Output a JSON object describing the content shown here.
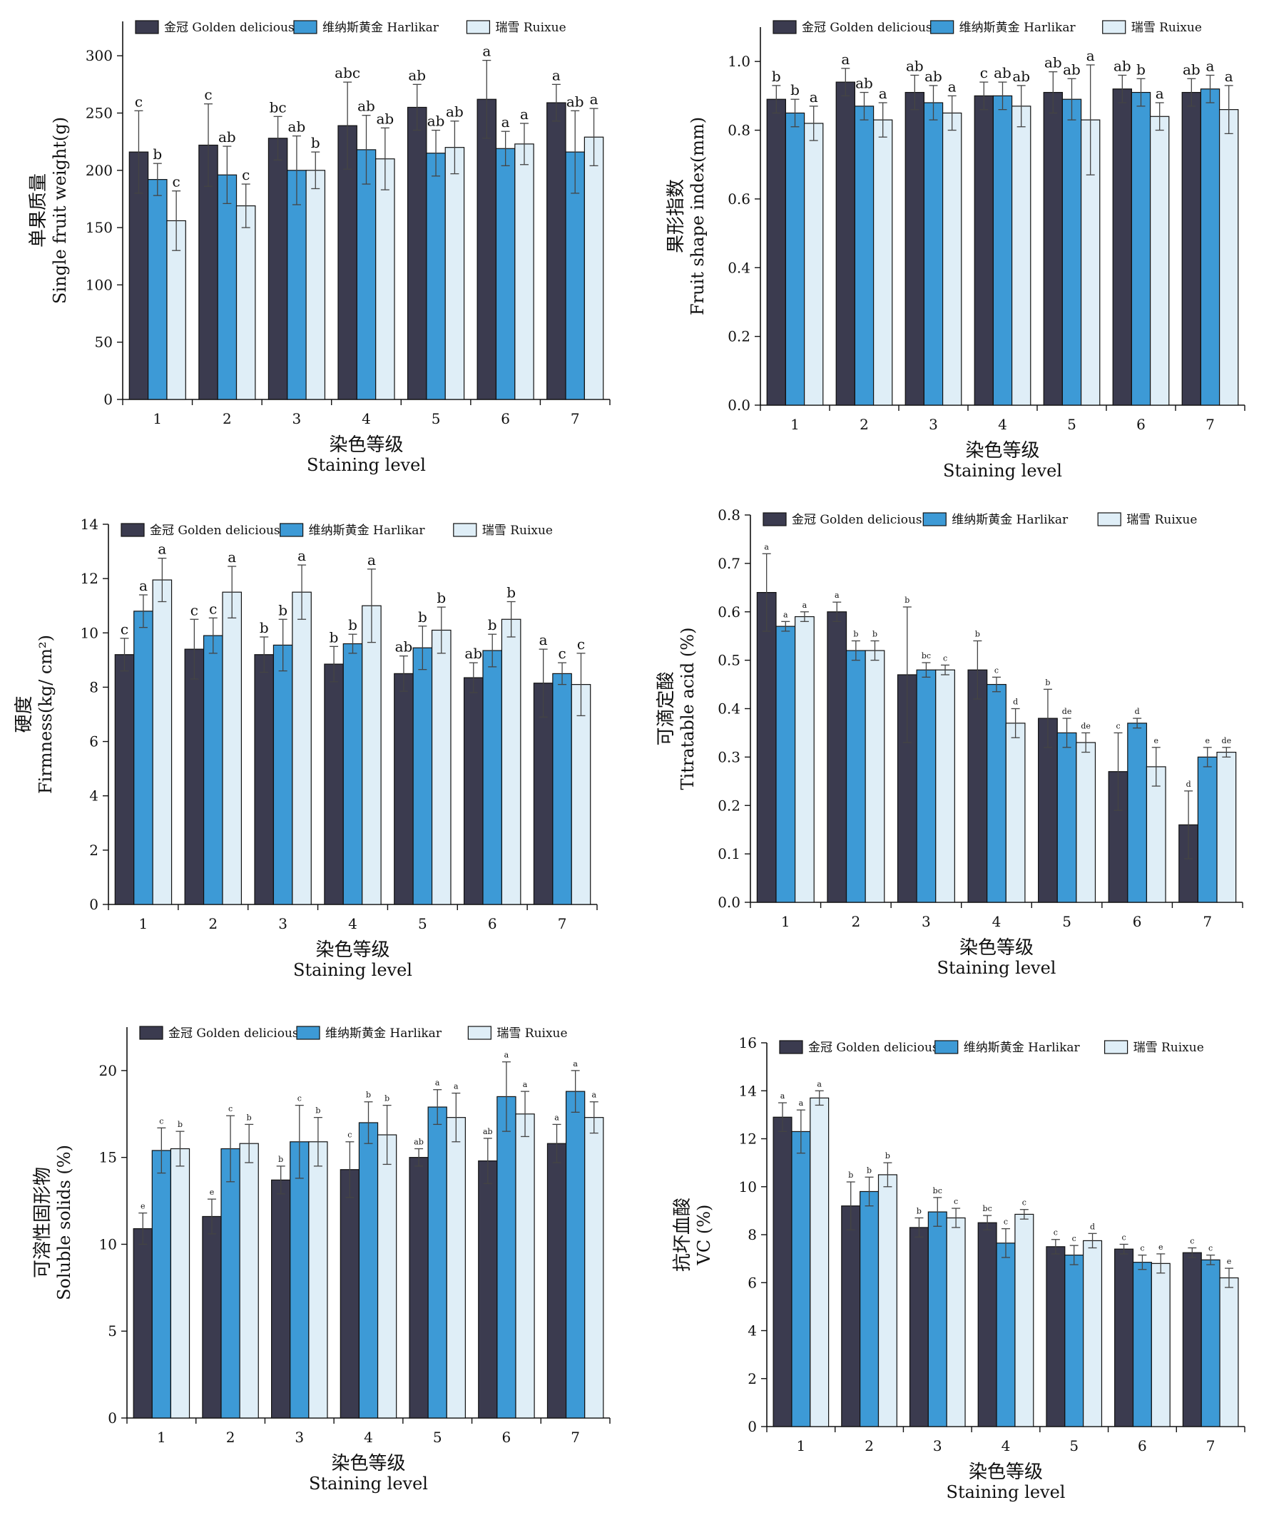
{
  "colors": {
    "golden": "#3b3b4f",
    "harlikar": "#3d9ad6",
    "ruixue": "#dfeef7"
  },
  "legend_labels": [
    "金冠 Golden delicious",
    "维纳斯黄金 Harlikar",
    "瑞雪 Ruixue"
  ],
  "chart_data": [
    {
      "type": "bar",
      "ylabel": "单果质量",
      "ylabel2": "Single fruit weight(g)",
      "xlabel": "染色等级",
      "xlabel2": "Staining level",
      "categories": [
        "1",
        "2",
        "3",
        "4",
        "5",
        "6",
        "7"
      ],
      "ylim": [
        0,
        330
      ],
      "yticks": [
        "0",
        "50",
        "100",
        "150",
        "200",
        "250",
        "300"
      ],
      "yticks_values": [
        0,
        50,
        100,
        150,
        200,
        250,
        300
      ],
      "legend_position": "top",
      "series": [
        {
          "name": "金冠 Golden delicious",
          "values": [
            216,
            222,
            228,
            239,
            255,
            262,
            259
          ],
          "errors": [
            36,
            36,
            19,
            38,
            20,
            34,
            16
          ],
          "labels": [
            "c",
            "c",
            "bc",
            "abc",
            "ab",
            "a",
            "a"
          ]
        },
        {
          "name": "维纳斯黄金 Harlikar",
          "values": [
            192,
            196,
            200,
            218,
            215,
            219,
            216
          ],
          "errors": [
            14,
            25,
            30,
            30,
            20,
            15,
            36
          ],
          "labels": [
            "b",
            "ab",
            "ab",
            "ab",
            "ab",
            "a",
            "ab"
          ]
        },
        {
          "name": "瑞雪 Ruixue",
          "values": [
            156,
            169,
            200,
            210,
            220,
            223,
            229
          ],
          "errors": [
            26,
            19,
            16,
            27,
            23,
            18,
            25
          ],
          "labels": [
            "c",
            "c",
            "b",
            "ab",
            "ab",
            "a",
            "a"
          ]
        }
      ]
    },
    {
      "type": "bar",
      "ylabel": "果形指数",
      "ylabel2": "Fruit shape index(mm)",
      "xlabel": "染色等级",
      "xlabel2": "Staining level",
      "categories": [
        "1",
        "2",
        "3",
        "4",
        "5",
        "6",
        "7"
      ],
      "ylim": [
        0,
        1.1
      ],
      "yticks": [
        "0.0",
        "0.2",
        "0.4",
        "0.6",
        "0.8",
        "1.0"
      ],
      "yticks_values": [
        0,
        0.2,
        0.4,
        0.6,
        0.8,
        1.0
      ],
      "legend_position": "top",
      "series": [
        {
          "name": "金冠 Golden delicious",
          "values": [
            0.89,
            0.94,
            0.91,
            0.9,
            0.91,
            0.92,
            0.91
          ],
          "errors": [
            0.04,
            0.04,
            0.05,
            0.04,
            0.06,
            0.04,
            0.04
          ],
          "labels": [
            "b",
            "a",
            "ab",
            "c",
            "ab",
            "ab",
            "ab"
          ]
        },
        {
          "name": "维纳斯黄金 Harlikar",
          "values": [
            0.85,
            0.87,
            0.88,
            0.9,
            0.89,
            0.91,
            0.92
          ],
          "errors": [
            0.04,
            0.04,
            0.05,
            0.04,
            0.06,
            0.04,
            0.04
          ],
          "labels": [
            "b",
            "ab",
            "ab",
            "ab",
            "ab",
            "b",
            "a"
          ]
        },
        {
          "name": "瑞雪 Ruixue",
          "values": [
            0.82,
            0.83,
            0.85,
            0.87,
            0.83,
            0.84,
            0.86
          ],
          "errors": [
            0.05,
            0.05,
            0.05,
            0.06,
            0.16,
            0.04,
            0.07
          ],
          "labels": [
            "a",
            "a",
            "a",
            "ab",
            "a",
            "a",
            "a"
          ]
        }
      ]
    },
    {
      "type": "bar",
      "ylabel": "硬度",
      "ylabel2": "Firmness(kg/ cm²)",
      "xlabel": "染色等级",
      "xlabel2": "Staining level",
      "categories": [
        "1",
        "2",
        "3",
        "4",
        "5",
        "6",
        "7"
      ],
      "ylim": [
        0,
        14
      ],
      "yticks": [
        "0",
        "2",
        "4",
        "6",
        "8",
        "10",
        "12",
        "14"
      ],
      "yticks_values": [
        0,
        2,
        4,
        6,
        8,
        10,
        12,
        14
      ],
      "legend_position": "top",
      "series": [
        {
          "name": "金冠 Golden delicious",
          "values": [
            9.2,
            9.4,
            9.2,
            8.85,
            8.5,
            8.35,
            8.15
          ],
          "errors": [
            0.6,
            1.1,
            0.65,
            0.65,
            0.65,
            0.55,
            1.25
          ],
          "labels": [
            "c",
            "c",
            "b",
            "b",
            "ab",
            "ab",
            "a"
          ]
        },
        {
          "name": "维纳斯黄金 Harlikar",
          "values": [
            10.8,
            9.9,
            9.55,
            9.6,
            9.45,
            9.35,
            8.5
          ],
          "errors": [
            0.6,
            0.65,
            0.95,
            0.35,
            0.8,
            0.6,
            0.4
          ],
          "labels": [
            "a",
            "c",
            "b",
            "b",
            "b",
            "b",
            "c"
          ]
        },
        {
          "name": "瑞雪 Ruixue",
          "values": [
            11.95,
            11.5,
            11.5,
            11.0,
            10.1,
            10.5,
            8.1
          ],
          "errors": [
            0.8,
            0.95,
            1.0,
            1.35,
            0.85,
            0.65,
            1.15
          ],
          "labels": [
            "a",
            "a",
            "a",
            "a",
            "b",
            "b",
            "c"
          ]
        }
      ]
    },
    {
      "type": "bar",
      "ylabel": "可滴定酸",
      "ylabel2": "Titratable acid (%)",
      "xlabel": "染色等级",
      "xlabel2": "Staining level",
      "categories": [
        "1",
        "2",
        "3",
        "4",
        "5",
        "6",
        "7"
      ],
      "ylim": [
        0,
        0.8
      ],
      "yticks": [
        "0.0",
        "0.1",
        "0.2",
        "0.3",
        "0.4",
        "0.5",
        "0.6",
        "0.7",
        "0.8"
      ],
      "yticks_values": [
        0,
        0.1,
        0.2,
        0.3,
        0.4,
        0.5,
        0.6,
        0.7,
        0.8
      ],
      "legend_position": "top",
      "series": [
        {
          "name": "金冠 Golden delicious",
          "values": [
            0.64,
            0.6,
            0.47,
            0.48,
            0.38,
            0.27,
            0.16
          ],
          "errors": [
            0.08,
            0.02,
            0.14,
            0.06,
            0.06,
            0.08,
            0.07
          ],
          "labels": [
            "a",
            "a",
            "b",
            "b",
            "b",
            "c",
            "d"
          ]
        },
        {
          "name": "维纳斯黄金 Harlikar",
          "values": [
            0.57,
            0.52,
            0.48,
            0.45,
            0.35,
            0.37,
            0.3
          ],
          "errors": [
            0.01,
            0.02,
            0.015,
            0.015,
            0.03,
            0.01,
            0.02
          ],
          "labels": [
            "a",
            "b",
            "bc",
            "c",
            "de",
            "d",
            "e"
          ]
        },
        {
          "name": "瑞雪 Ruixue",
          "values": [
            0.59,
            0.52,
            0.48,
            0.37,
            0.33,
            0.28,
            0.31
          ],
          "errors": [
            0.01,
            0.02,
            0.01,
            0.03,
            0.02,
            0.04,
            0.01
          ],
          "labels": [
            "a",
            "b",
            "c",
            "d",
            "de",
            "e",
            "de"
          ]
        }
      ]
    },
    {
      "type": "bar",
      "ylabel": "可溶性固形物",
      "ylabel2": "Soluble solids (%)",
      "xlabel": "染色等级",
      "xlabel2": "Staining level",
      "categories": [
        "1",
        "2",
        "3",
        "4",
        "5",
        "6",
        "7"
      ],
      "ylim": [
        0,
        22.5
      ],
      "yticks": [
        "0",
        "5",
        "10",
        "15",
        "20"
      ],
      "yticks_values": [
        0,
        5,
        10,
        15,
        20
      ],
      "legend_position": "top",
      "series": [
        {
          "name": "金冠 Golden delicious",
          "values": [
            10.9,
            11.6,
            13.7,
            14.3,
            15.0,
            14.8,
            15.8
          ],
          "errors": [
            0.9,
            1.0,
            0.8,
            1.6,
            0.5,
            1.3,
            1.1
          ],
          "labels": [
            "e",
            "e",
            "b",
            "c",
            "ab",
            "ab",
            "a"
          ]
        },
        {
          "name": "维纳斯黄金 Harlikar",
          "values": [
            15.4,
            15.5,
            15.9,
            17.0,
            17.9,
            18.5,
            18.8
          ],
          "errors": [
            1.3,
            1.9,
            2.1,
            1.2,
            1.0,
            2.0,
            1.2
          ],
          "labels": [
            "c",
            "c",
            "c",
            "b",
            "a",
            "a",
            "a"
          ]
        },
        {
          "name": "瑞雪 Ruixue",
          "values": [
            15.5,
            15.8,
            15.9,
            16.3,
            17.3,
            17.5,
            17.3
          ],
          "errors": [
            1.0,
            1.1,
            1.4,
            1.7,
            1.4,
            1.3,
            0.9
          ],
          "labels": [
            "b",
            "b",
            "b",
            "b",
            "a",
            "a",
            "a"
          ]
        }
      ]
    },
    {
      "type": "bar",
      "ylabel": "抗坏血酸",
      "ylabel2": "VC (%)",
      "xlabel": "染色等级",
      "xlabel2": "Staining level",
      "categories": [
        "1",
        "2",
        "3",
        "4",
        "5",
        "6",
        "7"
      ],
      "ylim": [
        0,
        16
      ],
      "yticks": [
        "0",
        "2",
        "4",
        "6",
        "8",
        "10",
        "12",
        "14",
        "16"
      ],
      "yticks_values": [
        0,
        2,
        4,
        6,
        8,
        10,
        12,
        14,
        16
      ],
      "legend_position": "top",
      "series": [
        {
          "name": "金冠 Golden delicious",
          "values": [
            12.9,
            9.2,
            8.3,
            8.5,
            7.5,
            7.4,
            7.25
          ],
          "errors": [
            0.6,
            1.0,
            0.4,
            0.3,
            0.3,
            0.2,
            0.2
          ],
          "labels": [
            "a",
            "b",
            "b",
            "bc",
            "c",
            "c",
            "c"
          ]
        },
        {
          "name": "维纳斯黄金 Harlikar",
          "values": [
            12.3,
            9.8,
            8.95,
            7.65,
            7.15,
            6.85,
            6.95
          ],
          "errors": [
            0.9,
            0.6,
            0.6,
            0.6,
            0.4,
            0.3,
            0.2
          ],
          "labels": [
            "a",
            "b",
            "bc",
            "c",
            "c",
            "c",
            "c"
          ]
        },
        {
          "name": "瑞雪 Ruixue",
          "values": [
            13.7,
            10.5,
            8.7,
            8.85,
            7.75,
            6.8,
            6.2
          ],
          "errors": [
            0.3,
            0.5,
            0.4,
            0.2,
            0.3,
            0.4,
            0.4
          ],
          "labels": [
            "a",
            "b",
            "c",
            "c",
            "d",
            "e",
            "e"
          ]
        }
      ]
    }
  ]
}
